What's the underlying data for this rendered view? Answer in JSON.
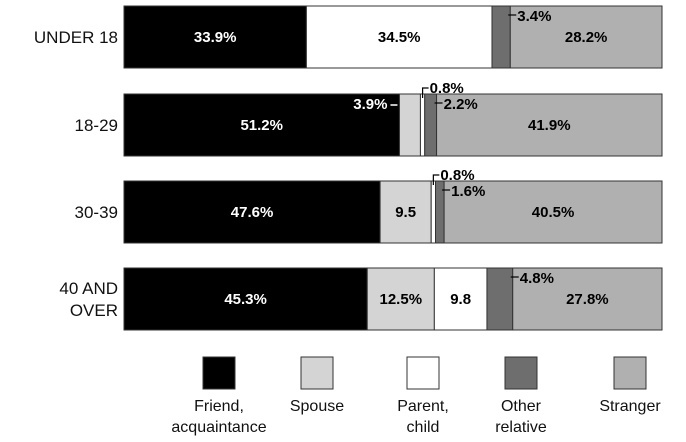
{
  "chart_data": {
    "type": "bar",
    "orientation": "horizontal",
    "stacked": true,
    "unit": "%",
    "categories": [
      "UNDER 18",
      "18-29",
      "30-39",
      "40 AND OVER"
    ],
    "series": [
      {
        "name": "Friend, acquaintance",
        "color": "#000000",
        "text_color": "#ffffff",
        "values": [
          33.9,
          51.2,
          47.6,
          45.3
        ],
        "labels": [
          "33.9%",
          "51.2%",
          "47.6%",
          "45.3%"
        ]
      },
      {
        "name": "Spouse",
        "color": "#d4d4d4",
        "text_color": "#000000",
        "values": [
          0,
          3.9,
          9.5,
          12.5
        ],
        "labels": [
          "",
          "3.9%",
          "9.5",
          "12.5%"
        ]
      },
      {
        "name": "Parent, child",
        "color": "#ffffff",
        "text_color": "#000000",
        "values": [
          34.5,
          0.8,
          0.8,
          9.8
        ],
        "labels": [
          "34.5%",
          "0.8%",
          "0.8%",
          "9.8"
        ]
      },
      {
        "name": "Other relative",
        "color": "#6e6e6e",
        "text_color": "#000000",
        "values": [
          3.4,
          2.2,
          1.6,
          4.8
        ],
        "labels": [
          "3.4%",
          "2.2%",
          "1.6%",
          "4.8%"
        ]
      },
      {
        "name": "Stranger",
        "color": "#b0b0b0",
        "text_color": "#000000",
        "values": [
          28.2,
          41.9,
          40.5,
          27.8
        ],
        "labels": [
          "28.2%",
          "41.9%",
          "40.5%",
          "27.8%"
        ]
      }
    ],
    "category_labels": [
      [
        "UNDER 18"
      ],
      [
        "18-29"
      ],
      [
        "30-39"
      ],
      [
        "40 AND",
        "OVER"
      ]
    ],
    "legend": {
      "placement": "bottom",
      "items": [
        {
          "lines": [
            "Friend,",
            "acquaintance"
          ],
          "color": "#000000"
        },
        {
          "lines": [
            "Spouse"
          ],
          "color": "#d4d4d4"
        },
        {
          "lines": [
            "Parent,",
            "child"
          ],
          "color": "#ffffff"
        },
        {
          "lines": [
            "Other",
            "relative"
          ],
          "color": "#6e6e6e"
        },
        {
          "lines": [
            "Stranger"
          ],
          "color": "#b0b0b0"
        }
      ]
    },
    "xlim": [
      0,
      100
    ],
    "grid": false
  }
}
